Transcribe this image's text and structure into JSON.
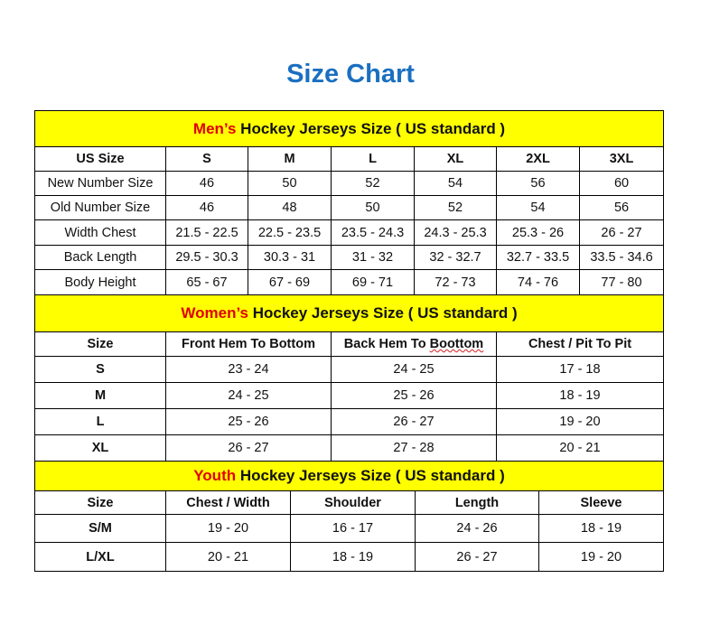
{
  "title": "Size Chart",
  "colors": {
    "banner": "#ffff00",
    "title": "#1a6fc0",
    "highlight": "#e00000"
  },
  "mens": {
    "banner_highlight": "Men’s",
    "banner_rest": " Hockey Jerseys Size ( US standard )",
    "headers": [
      "US Size",
      "S",
      "M",
      "L",
      "XL",
      "2XL",
      "3XL"
    ],
    "rows": [
      [
        "New Number Size",
        "46",
        "50",
        "52",
        "54",
        "56",
        "60"
      ],
      [
        "Old Number Size",
        "46",
        "48",
        "50",
        "52",
        "54",
        "56"
      ],
      [
        "Width Chest",
        "21.5 - 22.5",
        "22.5 - 23.5",
        "23.5 - 24.3",
        "24.3 - 25.3",
        "25.3 - 26",
        "26 - 27"
      ],
      [
        "Back Length",
        "29.5 - 30.3",
        "30.3 - 31",
        "31 - 32",
        "32 - 32.7",
        "32.7 - 33.5",
        "33.5 - 34.6"
      ],
      [
        "Body Height",
        "65 - 67",
        "67 - 69",
        "69 - 71",
        "72 - 73",
        "74 - 76",
        "77 - 80"
      ]
    ]
  },
  "womens": {
    "banner_highlight": "Women’s",
    "banner_rest": " Hockey Jerseys Size ( US standard )",
    "headers": [
      "Size",
      "Front Hem To Bottom",
      "Back Hem To Boottom",
      "Chest / Pit To Pit"
    ],
    "rows": [
      [
        "S",
        "23 - 24",
        "24 - 25",
        "17 - 18"
      ],
      [
        "M",
        "24 - 25",
        "25 - 26",
        "18 - 19"
      ],
      [
        "L",
        "25 - 26",
        "26 - 27",
        "19 - 20"
      ],
      [
        "XL",
        "26 - 27",
        "27 - 28",
        "20 - 21"
      ]
    ]
  },
  "youth": {
    "banner_highlight": "Youth",
    "banner_rest": " Hockey Jerseys Size ( US standard )",
    "headers": [
      "Size",
      "Chest / Width",
      "Shoulder",
      "Length",
      "Sleeve"
    ],
    "rows": [
      [
        "S/M",
        "19 - 20",
        "16 - 17",
        "24 - 26",
        "18 - 19"
      ],
      [
        "L/XL",
        "20 - 21",
        "18 - 19",
        "26 - 27",
        "19 - 20"
      ]
    ]
  }
}
